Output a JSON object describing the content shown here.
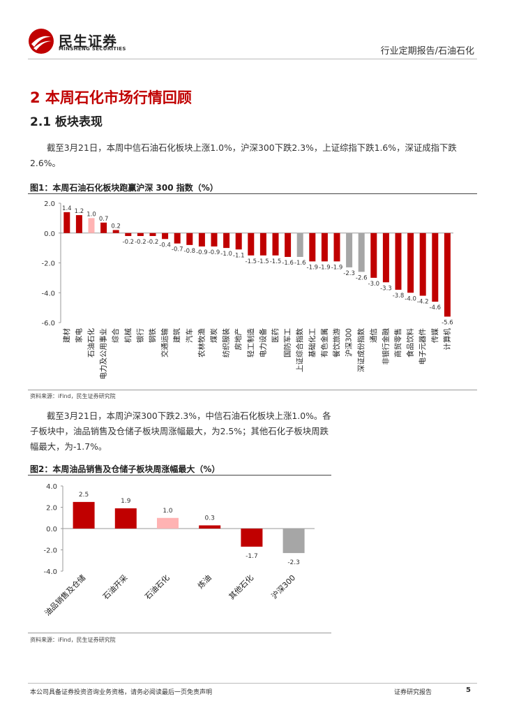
{
  "header": {
    "logo_cn": "民生证券",
    "logo_en": "MINSHENG SECURITIES",
    "report_type": "行业定期报告/石油石化"
  },
  "section": {
    "title": "2 本周石化市场行情回顾",
    "subtitle": "2.1 板块表现"
  },
  "paragraphs": [
    "截至3月21日，本周中信石油石化板块上涨1.0%，沪深300下跌2.3%，上证综指下跌1.6%，深证成指下跌2.6%。",
    "截至3月21日，本周沪深300下跌2.3%，中信石油石化板块上涨1.0%。各子板块中，油品销售及仓储子板块周涨幅最大，为2.5%；其他石化子板块周跌幅最大，为-1.7%。"
  ],
  "figures": [
    {
      "title": "图1：本周石油石化板块跑赢沪深 300 指数（%）",
      "source": "资料来源：iFind，民生证券研究院"
    },
    {
      "title": "图2：本周油品销售及仓储子板块周涨幅最大（%）",
      "source": "资料来源：iFind，民生证券研究院"
    }
  ],
  "colors": {
    "brand_red": "#c00000",
    "pink": "#ffb3b3",
    "gray": "#a6a6a6"
  },
  "chart_data": [
    {
      "type": "bar",
      "categories": [
        "建材",
        "家电",
        "石油石化",
        "电力及公用事业",
        "综合",
        "机械",
        "银行",
        "钢铁",
        "交通运输",
        "建筑",
        "汽车",
        "农林牧渔",
        "煤炭",
        "纺织服装",
        "房地产",
        "轻工制造",
        "电力设备",
        "医药",
        "国防军工",
        "上证综合指数",
        "基础化工",
        "有色金属",
        "餐饮旅游",
        "沪深300",
        "深证成份指数",
        "通信",
        "非银行金融",
        "商贸零售",
        "食品饮料",
        "电子元器件",
        "传媒",
        "计算机"
      ],
      "values": [
        1.4,
        1.2,
        1.0,
        0.7,
        0.2,
        -0.2,
        -0.2,
        -0.2,
        -0.4,
        -0.7,
        -0.8,
        -0.9,
        -0.9,
        -1.0,
        -1.1,
        -1.5,
        -1.5,
        -1.5,
        -1.6,
        -1.6,
        -1.9,
        -1.9,
        -1.9,
        -2.3,
        -2.6,
        -3.0,
        -3.3,
        -3.8,
        -4.0,
        -4.2,
        -4.6,
        -5.6
      ],
      "value_labels": [
        "1.4",
        "1.2",
        "1.0",
        "0.7",
        "0.2",
        "-0.2",
        "-0.2",
        "-0.2",
        "-0.4",
        "-0.7",
        "-0.8",
        "-0.9",
        "-0.9",
        "-1.0",
        "-1.1",
        "-1.5",
        "-1.5",
        "-1.5",
        "-1.6",
        "-1.6",
        "-1.9",
        "-1.9",
        "-1.9",
        "-2.3",
        "-2.6",
        "-3.0",
        "-3.3",
        "-3.8",
        "-4.0",
        "-4.2",
        "-4.6",
        "-5.6"
      ],
      "bar_colors": [
        "#c00000",
        "#c00000",
        "#ffb3b3",
        "#c00000",
        "#c00000",
        "#c00000",
        "#c00000",
        "#c00000",
        "#c00000",
        "#c00000",
        "#c00000",
        "#c00000",
        "#c00000",
        "#c00000",
        "#c00000",
        "#c00000",
        "#c00000",
        "#c00000",
        "#c00000",
        "#a6a6a6",
        "#c00000",
        "#c00000",
        "#c00000",
        "#a6a6a6",
        "#a6a6a6",
        "#c00000",
        "#c00000",
        "#c00000",
        "#c00000",
        "#c00000",
        "#c00000",
        "#c00000"
      ],
      "ylim": [
        -6.0,
        2.0
      ],
      "yticks": [
        "2.0",
        "0.0",
        "-2.0",
        "-4.0",
        "-6.0"
      ],
      "ytick_values": [
        2,
        0,
        -2,
        -4,
        -6
      ],
      "grid": false
    },
    {
      "type": "bar",
      "categories": [
        "油品销售及仓储",
        "石油开采",
        "石油石化",
        "炼油",
        "其他石化",
        "沪深300"
      ],
      "values": [
        2.5,
        1.9,
        1.0,
        0.3,
        -1.7,
        -2.3
      ],
      "value_labels": [
        "2.5",
        "1.9",
        "1.0",
        "0.3",
        "-1.7",
        "-2.3"
      ],
      "bar_colors": [
        "#c00000",
        "#c00000",
        "#ffb3b3",
        "#c00000",
        "#c00000",
        "#a6a6a6"
      ],
      "ylim": [
        -4.0,
        4.0
      ],
      "yticks": [
        "4.0",
        "2.0",
        "0.0",
        "-2.0",
        "-4.0"
      ],
      "ytick_values": [
        4,
        2,
        0,
        -2,
        -4
      ],
      "grid": false
    }
  ],
  "footer": {
    "disclaimer": "本公司具备证券投资咨询业务资格，请务必阅读最后一页免责声明",
    "doc_type": "证券研究报告",
    "page_number": "5"
  }
}
